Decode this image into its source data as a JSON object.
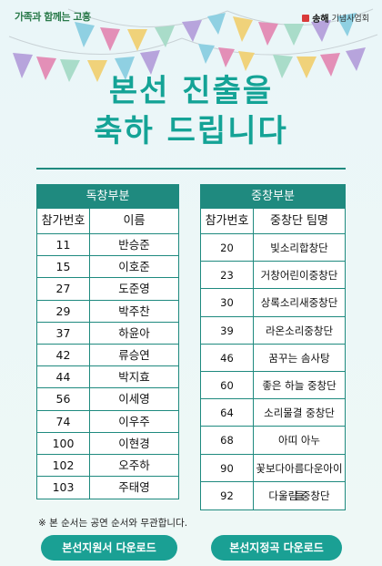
{
  "header": {
    "logo_left": "가족과 함께는 고흥",
    "logo_right_brand": "송해",
    "logo_right_sub": "기념사업회"
  },
  "title": {
    "line1": "본선 진출을",
    "line2": "축하 드립니다"
  },
  "solo": {
    "heading": "독창부분",
    "col_number": "참가번호",
    "col_name": "이름",
    "rows": [
      {
        "number": "11",
        "name": "반승준"
      },
      {
        "number": "15",
        "name": "이호준"
      },
      {
        "number": "27",
        "name": "도준영"
      },
      {
        "number": "29",
        "name": "박주찬"
      },
      {
        "number": "37",
        "name": "하윤아"
      },
      {
        "number": "42",
        "name": "류승연"
      },
      {
        "number": "44",
        "name": "박지효"
      },
      {
        "number": "56",
        "name": "이세영"
      },
      {
        "number": "74",
        "name": "이우주"
      },
      {
        "number": "100",
        "name": "이현경"
      },
      {
        "number": "102",
        "name": "오주하"
      },
      {
        "number": "103",
        "name": "주태영"
      }
    ]
  },
  "choir": {
    "heading": "중창부분",
    "col_number": "참가번호",
    "col_name": "중창단 팀명",
    "rows": [
      {
        "number": "20",
        "name": "빛소리합창단"
      },
      {
        "number": "23",
        "name": "거창어린이중창단"
      },
      {
        "number": "30",
        "name": "상록소리새중창단"
      },
      {
        "number": "39",
        "name": "라온소리중창단"
      },
      {
        "number": "46",
        "name": "꿈꾸는 솜사탕"
      },
      {
        "number": "60",
        "name": "좋은 하늘 중창단"
      },
      {
        "number": "64",
        "name": "소리물결 중창단"
      },
      {
        "number": "68",
        "name": "아띠 아누"
      },
      {
        "number": "90",
        "name": "꽃보다아름다운아이들"
      },
      {
        "number": "92",
        "name": "다울림 중창단"
      }
    ]
  },
  "note": "※ 본 순서는 공연 순서와 무관합니다.",
  "buttons": {
    "download_application": "본선지원서 다운로드",
    "download_song": "본선지정곡 다운로드"
  },
  "colors": {
    "accent": "#1f8a7f",
    "title": "#14a396",
    "button": "#1aa094"
  }
}
